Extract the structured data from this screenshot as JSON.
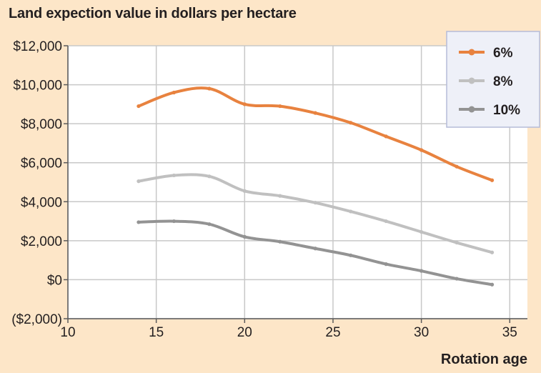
{
  "chart_data": {
    "type": "line",
    "title": "Land expection value in dollars per hectare",
    "xlabel": "Rotation age",
    "ylabel": "",
    "xlim": [
      10,
      36
    ],
    "ylim": [
      -2000,
      12000
    ],
    "x_ticks": [
      10,
      15,
      20,
      25,
      30,
      35
    ],
    "x_tick_labels": [
      "10",
      "15",
      "20",
      "25",
      "30",
      "35"
    ],
    "y_ticks": [
      -2000,
      0,
      2000,
      4000,
      6000,
      8000,
      10000,
      12000
    ],
    "y_tick_labels": [
      "($2,000)",
      "$0",
      "$2,000",
      "$4,000",
      "$6,000",
      "$8,000",
      "$10,000",
      "$12,000"
    ],
    "grid": true,
    "legend_position": "top-right",
    "x": [
      14,
      16,
      18,
      20,
      22,
      24,
      26,
      28,
      30,
      32,
      34
    ],
    "series": [
      {
        "name": "6%",
        "color": "#e8823f",
        "values": [
          8900,
          9600,
          9800,
          9000,
          8900,
          8550,
          8050,
          7350,
          6650,
          5800,
          5100
        ]
      },
      {
        "name": "8%",
        "color": "#c0c0c0",
        "values": [
          5050,
          5350,
          5300,
          4550,
          4300,
          3950,
          3500,
          3000,
          2450,
          1900,
          1400
        ]
      },
      {
        "name": "10%",
        "color": "#939393",
        "values": [
          2950,
          3000,
          2850,
          2200,
          1950,
          1600,
          1250,
          800,
          450,
          50,
          -250
        ]
      }
    ]
  }
}
